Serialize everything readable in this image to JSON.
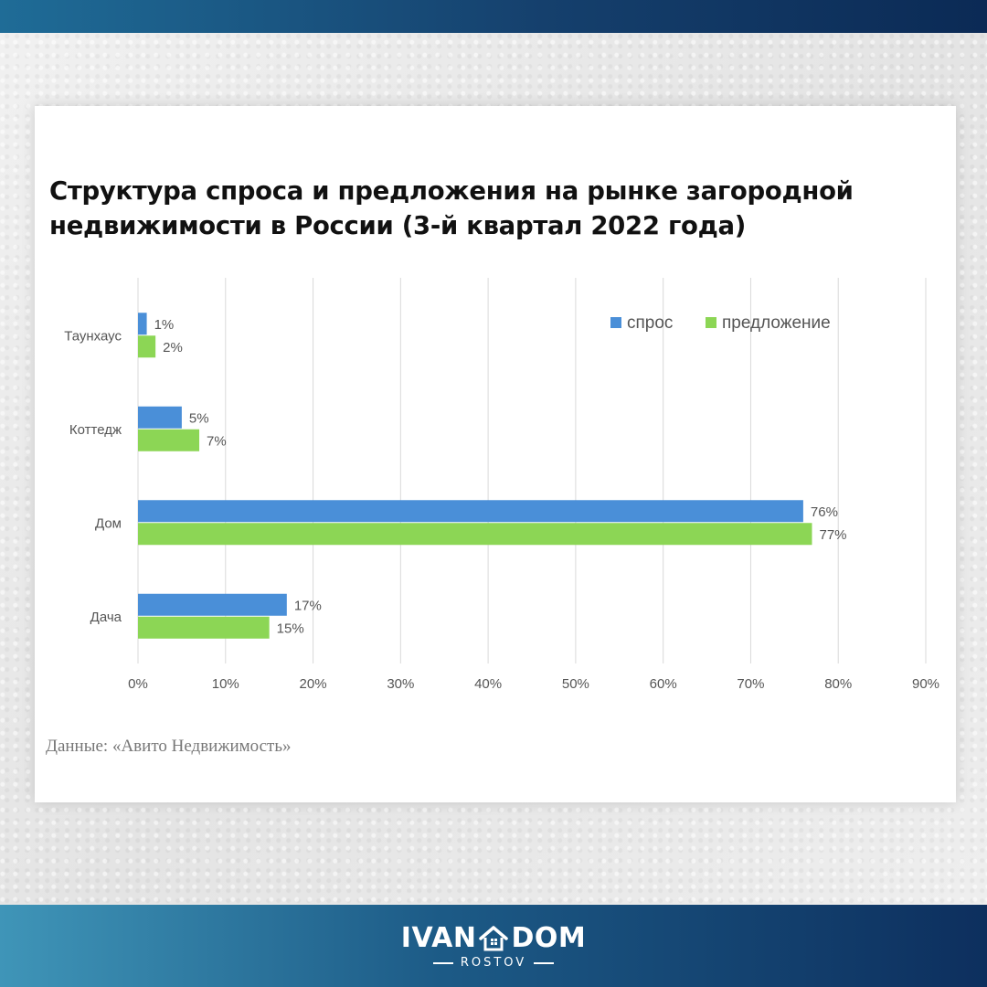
{
  "chart_data": {
    "type": "bar",
    "orientation": "horizontal",
    "title": "Структура спроса и предложения на рынке загородной недвижимости в России (3-й квартал 2022 года)",
    "title_lines": [
      "Структура спроса и предложения на рынке загородной",
      "недвижимости в России (3-й квартал 2022 года)"
    ],
    "categories": [
      "Таунхаус",
      "Коттедж",
      "Дом",
      "Дача"
    ],
    "series": [
      {
        "name": "спрос",
        "color": "#4a8fd8",
        "values": [
          1,
          5,
          76,
          17
        ],
        "labels": [
          "1%",
          "5%",
          "76%",
          "17%"
        ]
      },
      {
        "name": "предложение",
        "color": "#8cd655",
        "values": [
          2,
          7,
          77,
          15
        ],
        "labels": [
          "2%",
          "7%",
          "77%",
          "15%"
        ]
      }
    ],
    "xlim": [
      0,
      90
    ],
    "x_ticks": [
      0,
      10,
      20,
      30,
      40,
      50,
      60,
      70,
      80,
      90
    ],
    "x_tick_labels": [
      "0%",
      "10%",
      "20%",
      "30%",
      "40%",
      "50%",
      "60%",
      "70%",
      "80%",
      "90%"
    ],
    "grid": "vertical",
    "legend_position": "top-right"
  },
  "source": "Данные: «Авито Недвижимость»",
  "brand": {
    "left": "IVAN",
    "right": "DOM",
    "sub": "ROSTOV",
    "icon": "house-icon"
  }
}
